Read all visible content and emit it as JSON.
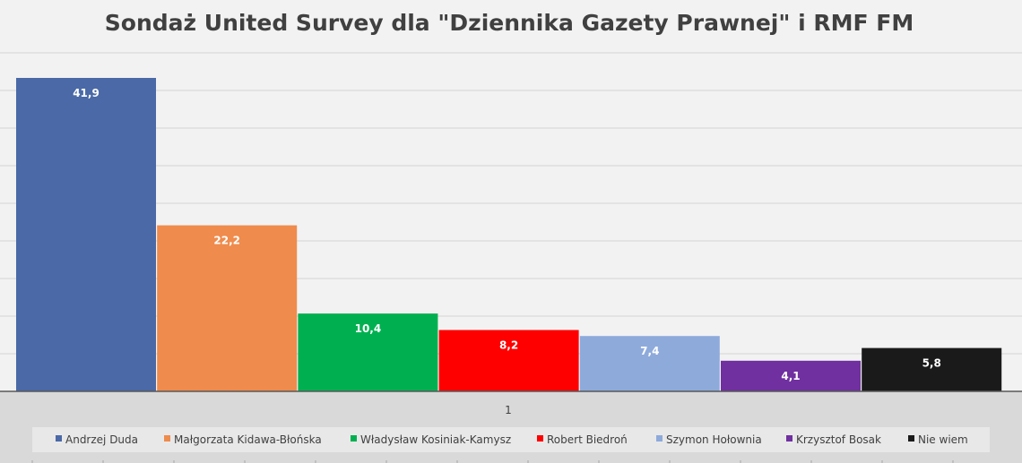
{
  "chart_data": {
    "type": "bar",
    "title": "Sondaż United Survey dla \"Dziennika Gazety Prawnej\" i RMF FM",
    "categories": [
      "1"
    ],
    "ylim": [
      0,
      42
    ],
    "grid": true,
    "legend_position": "bottom",
    "series": [
      {
        "name": "Andrzej Duda",
        "values": [
          41.9
        ],
        "label": "41,9",
        "color": "#4a69a6"
      },
      {
        "name": "Małgorzata Kidawa-Błońska",
        "values": [
          22.2
        ],
        "label": "22,2",
        "color": "#ef8b4c"
      },
      {
        "name": "Władysław Kosiniak-Kamysz",
        "values": [
          10.4
        ],
        "label": "10,4",
        "color": "#00b050"
      },
      {
        "name": "Robert Biedroń",
        "values": [
          8.2
        ],
        "label": "8,2",
        "color": "#ff0000"
      },
      {
        "name": "Szymon Hołownia",
        "values": [
          7.4
        ],
        "label": "7,4",
        "color": "#8eaadb"
      },
      {
        "name": "Krzysztof Bosak",
        "values": [
          4.1
        ],
        "label": "4,1",
        "color": "#7030a0"
      },
      {
        "name": "Nie wiem",
        "values": [
          5.8
        ],
        "label": "5,8",
        "color": "#1a1a1a"
      }
    ]
  }
}
